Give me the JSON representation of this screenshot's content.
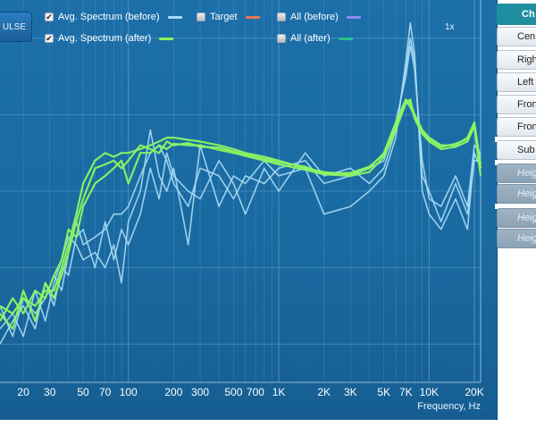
{
  "impulse_button": {
    "label": "ULSE"
  },
  "legend": {
    "avg_before": {
      "label": "Avg. Spectrum (before)",
      "checked": true,
      "color": "#a8dcf5"
    },
    "avg_after": {
      "label": "Avg. Spectrum (after)",
      "checked": true,
      "color": "#8cf562"
    },
    "target": {
      "label": "Target",
      "checked": false,
      "color": "#e7765a"
    },
    "all_before": {
      "label": "All (before)",
      "checked": false,
      "color": "#8f8af0"
    },
    "all_after": {
      "label": "All (after)",
      "checked": false,
      "color": "#2dbf8e"
    }
  },
  "zoom_label": "1x",
  "x_axis_title": "Frequency, Hz",
  "side_panel": {
    "header": "Ch",
    "items": [
      {
        "label": "Cen",
        "enabled": true
      },
      {
        "label": "Righ",
        "enabled": true
      },
      {
        "label": "Left",
        "enabled": true
      },
      {
        "label": "Fron",
        "enabled": true
      },
      {
        "label": "Fron",
        "enabled": true
      },
      {
        "label": "Sub",
        "enabled": true
      },
      {
        "label": "Heig",
        "enabled": false
      },
      {
        "label": "Heig",
        "enabled": false
      },
      {
        "label": "Heig",
        "enabled": false
      },
      {
        "label": "Heig",
        "enabled": false
      }
    ]
  },
  "chart_data": {
    "type": "line",
    "xscale": "log",
    "xlim": [
      14,
      22000
    ],
    "ylim": [
      -40,
      10
    ],
    "xlabel": "Frequency, Hz",
    "x_ticks": [
      {
        "value": 20,
        "label": "20"
      },
      {
        "value": 30,
        "label": "30"
      },
      {
        "value": 50,
        "label": "50"
      },
      {
        "value": 70,
        "label": "70"
      },
      {
        "value": 100,
        "label": "100"
      },
      {
        "value": 200,
        "label": "200"
      },
      {
        "value": 300,
        "label": "300"
      },
      {
        "value": 500,
        "label": "500"
      },
      {
        "value": 700,
        "label": "700"
      },
      {
        "value": 1000,
        "label": "1K"
      },
      {
        "value": 2000,
        "label": "2K"
      },
      {
        "value": 3000,
        "label": "3K"
      },
      {
        "value": 5000,
        "label": "5K"
      },
      {
        "value": 7000,
        "label": "7K"
      },
      {
        "value": 10000,
        "label": "10K"
      },
      {
        "value": 20000,
        "label": "20K"
      }
    ],
    "y_gridlines": [
      5,
      -5,
      -15,
      -25,
      -35
    ],
    "series": [
      {
        "color": "#a8dcf5",
        "role": "before-1",
        "x": [
          14,
          17,
          20,
          24,
          28,
          32,
          36,
          40,
          45,
          50,
          60,
          70,
          80,
          90,
          100,
          120,
          140,
          160,
          180,
          200,
          250,
          300,
          400,
          500,
          600,
          800,
          1000,
          1500,
          2000,
          3000,
          4000,
          5000,
          6000,
          7000,
          7500,
          8000,
          9000,
          10000,
          12000,
          15000,
          18000,
          20000,
          22000
        ],
        "y": [
          -33,
          -31,
          -34,
          -28,
          -32,
          -27,
          -24,
          -21,
          -22,
          -24,
          -23,
          -25,
          -22,
          -27,
          -19,
          -15,
          -7,
          -13,
          -15,
          -12,
          -22,
          -9,
          -17,
          -13,
          -14,
          -11,
          -13,
          -12,
          -18,
          -17,
          -15,
          -13,
          -8,
          2,
          7,
          3,
          -15,
          -18,
          -20,
          -16,
          -20,
          -10,
          -12
        ]
      },
      {
        "color": "#a8dcf5",
        "role": "before-2",
        "x": [
          14,
          17,
          20,
          24,
          28,
          32,
          36,
          40,
          45,
          50,
          60,
          70,
          80,
          90,
          100,
          120,
          140,
          160,
          180,
          200,
          250,
          300,
          400,
          500,
          600,
          800,
          1000,
          1500,
          2000,
          3000,
          4000,
          5000,
          6000,
          7000,
          7500,
          8000,
          9000,
          10000,
          12000,
          15000,
          18000,
          20000,
          22000
        ],
        "y": [
          -30,
          -34,
          -29,
          -31,
          -29,
          -26,
          -28,
          -23,
          -19,
          -22,
          -21,
          -20,
          -18,
          -18,
          -17,
          -13,
          -10,
          -9,
          -11,
          -14,
          -17,
          -12,
          -13,
          -16,
          -13,
          -14,
          -12,
          -11,
          -14,
          -13,
          -12,
          -11,
          -6,
          0,
          4,
          1,
          -11,
          -16,
          -17,
          -13,
          -17,
          -9,
          -10
        ]
      },
      {
        "color": "#a8dcf5",
        "role": "before-3",
        "x": [
          14,
          17,
          20,
          24,
          28,
          32,
          36,
          40,
          45,
          50,
          60,
          70,
          80,
          90,
          100,
          120,
          140,
          160,
          180,
          200,
          250,
          300,
          400,
          500,
          600,
          800,
          1000,
          1500,
          2000,
          3000,
          4000,
          5000,
          6000,
          7000,
          7500,
          8000,
          9000,
          10000,
          12000,
          15000,
          18000,
          20000,
          22000
        ],
        "y": [
          -35,
          -32,
          -30,
          -33,
          -27,
          -30,
          -25,
          -26,
          -21,
          -20,
          -25,
          -19,
          -24,
          -20,
          -22,
          -18,
          -12,
          -16,
          -10,
          -13,
          -15,
          -16,
          -11,
          -14,
          -18,
          -12,
          -15,
          -10,
          -13,
          -12,
          -14,
          -12,
          -7,
          1,
          5,
          2,
          -13,
          -15,
          -19,
          -14,
          -18,
          -11,
          -11
        ]
      },
      {
        "color": "#8cf562",
        "role": "after-1",
        "x": [
          14,
          17,
          20,
          24,
          28,
          32,
          36,
          40,
          45,
          50,
          60,
          70,
          80,
          90,
          100,
          120,
          140,
          160,
          180,
          200,
          250,
          300,
          400,
          500,
          600,
          800,
          1000,
          1500,
          2000,
          3000,
          4000,
          5000,
          6000,
          7000,
          7500,
          8000,
          9000,
          10000,
          12000,
          15000,
          18000,
          20000,
          22000
        ],
        "y": [
          -30,
          -31,
          -29,
          -30,
          -28,
          -28,
          -25,
          -22,
          -18,
          -14,
          -11,
          -10,
          -10.5,
          -10,
          -10,
          -9.5,
          -9,
          -8.5,
          -8,
          -8,
          -8.3,
          -8.5,
          -9,
          -9.5,
          -10,
          -10.5,
          -11,
          -12,
          -12.5,
          -12.8,
          -12,
          -10,
          -6,
          -3,
          -3.5,
          -5,
          -7,
          -8,
          -9,
          -9,
          -8,
          -6,
          -12
        ]
      },
      {
        "color": "#8cf562",
        "role": "after-2",
        "x": [
          14,
          17,
          20,
          24,
          28,
          32,
          36,
          40,
          45,
          50,
          60,
          70,
          80,
          90,
          100,
          120,
          140,
          160,
          180,
          200,
          250,
          300,
          400,
          500,
          600,
          800,
          1000,
          1500,
          2000,
          3000,
          4000,
          5000,
          6000,
          7000,
          7500,
          8000,
          9000,
          10000,
          12000,
          15000,
          18000,
          20000,
          22000
        ],
        "y": [
          -32,
          -29,
          -31,
          -28,
          -29,
          -26,
          -24,
          -20,
          -21,
          -17,
          -14,
          -13,
          -12,
          -11,
          -14,
          -10,
          -10,
          -9,
          -9.5,
          -8.8,
          -9,
          -9,
          -9.6,
          -10,
          -10.4,
          -11,
          -11.5,
          -12.2,
          -12.8,
          -13,
          -12.5,
          -10.5,
          -7,
          -3.5,
          -3,
          -5.5,
          -7.5,
          -8.5,
          -9.5,
          -9.2,
          -8.5,
          -6.5,
          -13
        ]
      },
      {
        "color": "#8cf562",
        "role": "after-3",
        "x": [
          14,
          17,
          20,
          24,
          28,
          32,
          36,
          40,
          45,
          50,
          60,
          70,
          80,
          90,
          100,
          120,
          140,
          160,
          180,
          200,
          250,
          300,
          400,
          500,
          600,
          800,
          1000,
          1500,
          2000,
          3000,
          4000,
          5000,
          6000,
          7000,
          7500,
          8000,
          9000,
          10000,
          12000,
          15000,
          18000,
          20000,
          22000
        ],
        "y": [
          -31,
          -33,
          -28,
          -32,
          -27,
          -29,
          -26,
          -23,
          -19,
          -16,
          -12,
          -11.5,
          -11,
          -12,
          -11,
          -9,
          -9.5,
          -10,
          -8.5,
          -9,
          -8.7,
          -9.2,
          -9.3,
          -9.8,
          -10.2,
          -10.8,
          -11.2,
          -11.8,
          -12.7,
          -12.6,
          -11.8,
          -10.2,
          -6.5,
          -3.2,
          -4,
          -5.2,
          -7.2,
          -8.2,
          -9.2,
          -8.8,
          -8.2,
          -6.2,
          -11.5
        ]
      }
    ]
  }
}
